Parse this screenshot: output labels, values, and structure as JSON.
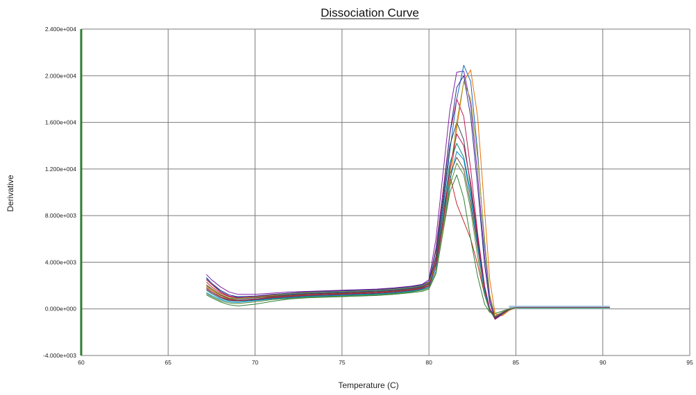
{
  "chart_data": {
    "type": "line",
    "title": "Dissociation Curve",
    "xlabel": "Temperature (C)",
    "ylabel": "Derivative",
    "xlim": [
      60,
      95
    ],
    "ylim": [
      -4000,
      24000
    ],
    "x_ticks": [
      60,
      65,
      70,
      75,
      80,
      85,
      90,
      95
    ],
    "x_tick_labels": [
      "60",
      "65",
      "70",
      "75",
      "80",
      "85",
      "90",
      "95"
    ],
    "y_ticks": [
      -4000,
      0,
      4000,
      8000,
      12000,
      16000,
      20000,
      24000
    ],
    "y_tick_labels": [
      "-4.000e+003",
      "0.000e+000",
      "4.000e+003",
      "8.000e+003",
      "1.200e+004",
      "1.600e+004",
      "2.000e+004",
      "2.400e+004"
    ],
    "grid": true,
    "legend": "none",
    "colors": {
      "left_axis": "#2e7d32",
      "grid": "#7a7a7a",
      "baseline_fill": "#9ec3db"
    },
    "x": [
      67.2,
      67.5,
      68,
      68.5,
      69,
      70,
      71,
      72,
      73,
      74,
      75,
      76,
      77,
      78,
      79,
      79.6,
      80,
      80.4,
      80.8,
      81.2,
      81.6,
      82,
      82.4,
      82.8,
      83.2,
      83.5,
      83.8,
      84.2,
      84.6,
      85,
      86,
      87,
      88,
      89,
      90,
      90.4
    ],
    "series": [
      {
        "color": "#7b1fa2",
        "values": [
          2950,
          2500,
          1900,
          1450,
          1250,
          1250,
          1350,
          1450,
          1500,
          1550,
          1600,
          1650,
          1700,
          1800,
          1950,
          2100,
          2500,
          6000,
          11500,
          17000,
          20300,
          20400,
          17500,
          11500,
          4500,
          800,
          -700,
          -350,
          0,
          120,
          120,
          120,
          120,
          120,
          120,
          120
        ]
      },
      {
        "color": "#1565c0",
        "values": [
          2700,
          2200,
          1500,
          1100,
          1000,
          1000,
          1150,
          1250,
          1350,
          1400,
          1450,
          1500,
          1550,
          1650,
          1800,
          1950,
          2200,
          4500,
          8500,
          13500,
          18000,
          20900,
          19500,
          13500,
          5500,
          1100,
          -600,
          -400,
          -50,
          100,
          100,
          100,
          100,
          100,
          100,
          100
        ]
      },
      {
        "color": "#c62828",
        "values": [
          2500,
          2100,
          1450,
          1100,
          950,
          950,
          1050,
          1150,
          1250,
          1300,
          1350,
          1400,
          1450,
          1550,
          1700,
          1850,
          2100,
          4300,
          8000,
          11500,
          9000,
          7500,
          6000,
          3800,
          1200,
          0,
          -600,
          -300,
          0,
          100,
          100,
          100,
          100,
          100,
          100,
          100
        ]
      },
      {
        "color": "#2e7d32",
        "values": [
          1200,
          950,
          600,
          350,
          250,
          400,
          650,
          850,
          950,
          1000,
          1050,
          1100,
          1150,
          1250,
          1400,
          1500,
          1700,
          3000,
          6500,
          10000,
          11500,
          9500,
          6000,
          2800,
          400,
          -300,
          -400,
          -200,
          0,
          80,
          80,
          80,
          80,
          80,
          80,
          80
        ]
      },
      {
        "color": "#ef6c00",
        "values": [
          1900,
          1600,
          1150,
          850,
          750,
          800,
          950,
          1050,
          1150,
          1200,
          1250,
          1300,
          1350,
          1450,
          1600,
          1750,
          1950,
          3500,
          6500,
          10500,
          15500,
          19500,
          20500,
          16500,
          8500,
          2500,
          -400,
          -600,
          -150,
          100,
          100,
          100,
          100,
          100,
          100,
          100
        ]
      },
      {
        "color": "#00897b",
        "values": [
          1600,
          1300,
          900,
          700,
          650,
          750,
          900,
          1000,
          1100,
          1150,
          1200,
          1250,
          1300,
          1400,
          1550,
          1700,
          1950,
          4000,
          8000,
          12500,
          14200,
          13000,
          10000,
          6000,
          1800,
          -200,
          -800,
          -400,
          0,
          100,
          100,
          100,
          100,
          100,
          100,
          100
        ]
      },
      {
        "color": "#c2185b",
        "values": [
          2300,
          1900,
          1350,
          1050,
          950,
          1050,
          1200,
          1350,
          1450,
          1500,
          1550,
          1600,
          1650,
          1750,
          1900,
          2050,
          2300,
          5200,
          10000,
          15000,
          18000,
          16500,
          12000,
          6500,
          2000,
          0,
          -900,
          -500,
          -100,
          100,
          100,
          100,
          100,
          100,
          100,
          100
        ]
      },
      {
        "color": "#37474f",
        "values": [
          2000,
          1700,
          1200,
          900,
          850,
          950,
          1100,
          1200,
          1300,
          1350,
          1400,
          1450,
          1500,
          1600,
          1750,
          1900,
          2150,
          4500,
          9000,
          14000,
          16000,
          14500,
          10500,
          5800,
          1700,
          -100,
          -850,
          -450,
          -50,
          100,
          100,
          100,
          100,
          100,
          100,
          100
        ]
      },
      {
        "color": "#6d4c41",
        "values": [
          1800,
          1500,
          1050,
          800,
          750,
          850,
          1000,
          1100,
          1200,
          1250,
          1300,
          1350,
          1400,
          1500,
          1650,
          1800,
          2000,
          4000,
          7500,
          11500,
          13000,
          12000,
          9000,
          5200,
          1500,
          -150,
          -700,
          -350,
          0,
          100,
          100,
          100,
          100,
          100,
          100,
          100
        ]
      },
      {
        "color": "#0288d1",
        "values": [
          1400,
          1150,
          800,
          600,
          550,
          700,
          850,
          950,
          1050,
          1100,
          1150,
          1200,
          1250,
          1350,
          1500,
          1650,
          1850,
          3500,
          7000,
          11000,
          13500,
          12800,
          9500,
          5500,
          1500,
          -200,
          -700,
          -350,
          0,
          90,
          90,
          90,
          90,
          90,
          90,
          90
        ]
      },
      {
        "color": "#9e9d24",
        "values": [
          2100,
          1750,
          1250,
          950,
          900,
          1000,
          1150,
          1300,
          1400,
          1450,
          1500,
          1550,
          1600,
          1700,
          1850,
          2000,
          2250,
          3800,
          7000,
          11500,
          16000,
          19500,
          18000,
          13000,
          6000,
          1200,
          -600,
          -500,
          -100,
          100,
          100,
          100,
          100,
          100,
          100,
          100
        ]
      },
      {
        "color": "#283593",
        "values": [
          2600,
          2200,
          1600,
          1200,
          1050,
          1100,
          1250,
          1350,
          1450,
          1500,
          1550,
          1600,
          1650,
          1750,
          1900,
          2050,
          2350,
          5000,
          9500,
          15000,
          19000,
          20000,
          16500,
          10500,
          3800,
          500,
          -800,
          -450,
          -50,
          100,
          100,
          100,
          100,
          100,
          100,
          100
        ]
      },
      {
        "color": "#ad1457",
        "values": [
          1700,
          1400,
          1000,
          750,
          700,
          800,
          950,
          1050,
          1150,
          1200,
          1250,
          1300,
          1350,
          1450,
          1600,
          1750,
          1950,
          3800,
          7200,
          12000,
          15000,
          14000,
          10800,
          6200,
          1900,
          0,
          -750,
          -400,
          0,
          100,
          100,
          100,
          100,
          100,
          100,
          100
        ]
      },
      {
        "color": "#558b2f",
        "values": [
          1300,
          1050,
          700,
          500,
          450,
          600,
          800,
          900,
          1000,
          1050,
          1100,
          1150,
          1200,
          1300,
          1450,
          1600,
          1800,
          3200,
          6500,
          10500,
          12500,
          11500,
          8500,
          4500,
          1200,
          -250,
          -650,
          -300,
          0,
          80,
          80,
          80,
          80,
          80,
          80,
          80
        ]
      }
    ]
  }
}
